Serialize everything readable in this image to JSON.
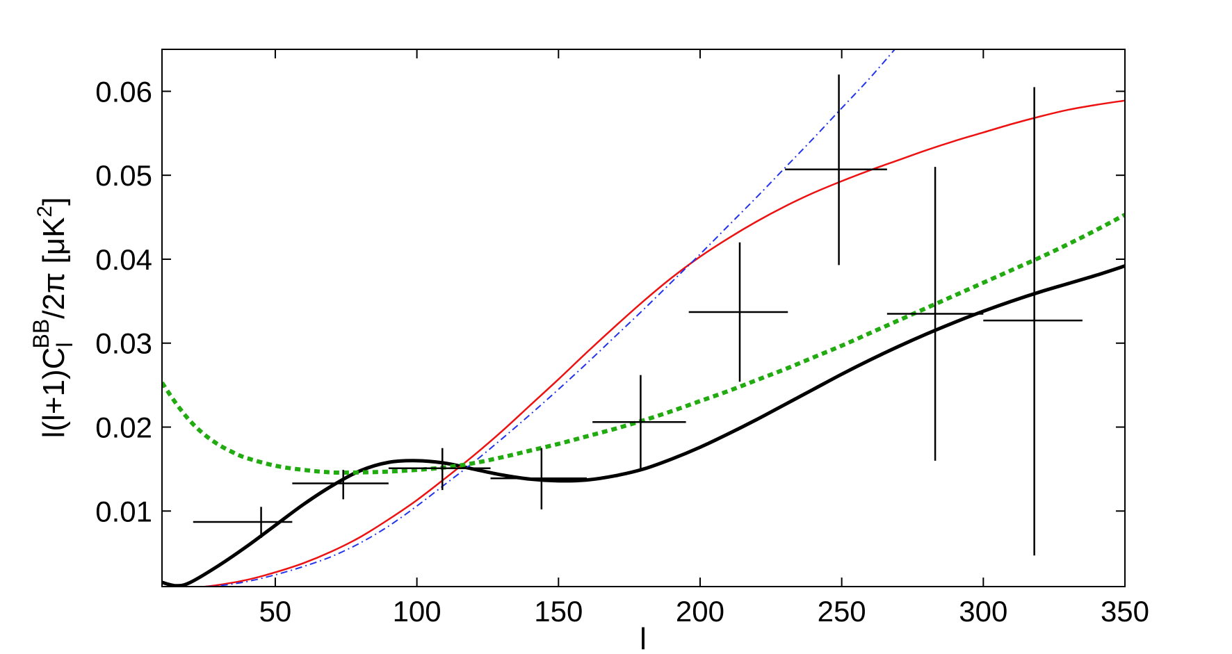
{
  "chart_data": {
    "type": "line",
    "title": "",
    "xlabel": "l",
    "ylabel": {
      "prefix": "l(l+1)C",
      "subscript": "l",
      "superscript": "BB",
      "suffix": "/2π [μK",
      "unit_superscript": "2",
      "close": "]"
    },
    "xlim": [
      10,
      350
    ],
    "ylim": [
      0.001,
      0.065
    ],
    "x_ticks": [
      50,
      100,
      150,
      200,
      250,
      300,
      350
    ],
    "x_tick_labels": [
      "50",
      "100",
      "150",
      "200",
      "250",
      "300",
      "350"
    ],
    "y_ticks": [
      0.01,
      0.02,
      0.03,
      0.04,
      0.05,
      0.06
    ],
    "y_tick_labels": [
      "0.01",
      "0.02",
      "0.03",
      "0.04",
      "0.05",
      "0.06"
    ],
    "grid": false,
    "series": [
      {
        "style": "solid-thick",
        "color": "#000000",
        "x": [
          10,
          15,
          20,
          30,
          40,
          50,
          60,
          70,
          80,
          90,
          100,
          110,
          120,
          130,
          140,
          150,
          160,
          170,
          180,
          190,
          200,
          210,
          220,
          230,
          240,
          250,
          260,
          270,
          280,
          290,
          300,
          310,
          320,
          330,
          340,
          350
        ],
        "y": [
          0.0015,
          0.0011,
          0.0015,
          0.0035,
          0.0058,
          0.0083,
          0.0108,
          0.013,
          0.0148,
          0.0158,
          0.016,
          0.0157,
          0.015,
          0.0143,
          0.0138,
          0.0136,
          0.0137,
          0.0142,
          0.015,
          0.0162,
          0.0176,
          0.0192,
          0.0209,
          0.0227,
          0.0245,
          0.0263,
          0.028,
          0.0296,
          0.0311,
          0.0325,
          0.0338,
          0.035,
          0.0361,
          0.0371,
          0.0381,
          0.0392
        ]
      },
      {
        "style": "solid",
        "color": "#ee1111",
        "x": [
          10,
          20,
          30,
          40,
          50,
          60,
          70,
          80,
          90,
          100,
          110,
          120,
          130,
          140,
          150,
          160,
          170,
          180,
          190,
          200,
          210,
          220,
          230,
          240,
          250,
          260,
          270,
          280,
          290,
          300,
          310,
          320,
          330,
          340,
          350
        ],
        "y": [
          0.0005,
          0.0008,
          0.0012,
          0.0018,
          0.0027,
          0.0038,
          0.0052,
          0.0069,
          0.009,
          0.0113,
          0.0139,
          0.0166,
          0.0195,
          0.0226,
          0.0257,
          0.0289,
          0.032,
          0.035,
          0.0378,
          0.0403,
          0.0425,
          0.0445,
          0.0463,
          0.0479,
          0.0493,
          0.0506,
          0.0518,
          0.053,
          0.0541,
          0.0551,
          0.0561,
          0.057,
          0.0578,
          0.0584,
          0.0589
        ]
      },
      {
        "style": "dash-dot",
        "color": "#2233ee",
        "x": [
          20,
          30,
          40,
          50,
          60,
          70,
          80,
          90,
          100,
          110,
          120,
          130,
          140,
          150,
          160,
          170,
          180,
          190,
          200,
          210,
          220,
          230,
          240,
          250,
          260,
          270
        ],
        "y": [
          0.0009,
          0.0011,
          0.0016,
          0.0024,
          0.0034,
          0.0046,
          0.0062,
          0.0082,
          0.0106,
          0.0132,
          0.0158,
          0.0186,
          0.0215,
          0.0245,
          0.0276,
          0.0308,
          0.034,
          0.0373,
          0.0406,
          0.044,
          0.0474,
          0.0509,
          0.0544,
          0.058,
          0.0616,
          0.0655
        ]
      },
      {
        "style": "dotted-thick",
        "color": "#22aa11",
        "x": [
          10,
          15,
          20,
          25,
          30,
          35,
          40,
          50,
          60,
          70,
          80,
          90,
          100,
          110,
          120,
          130,
          140,
          150,
          160,
          170,
          180,
          190,
          200,
          210,
          220,
          230,
          240,
          250,
          260,
          270,
          280,
          290,
          300,
          310,
          320,
          330,
          340,
          350
        ],
        "y": [
          0.0253,
          0.0228,
          0.0207,
          0.0191,
          0.0179,
          0.017,
          0.0163,
          0.0154,
          0.0149,
          0.0146,
          0.0146,
          0.0147,
          0.0149,
          0.0152,
          0.0157,
          0.0164,
          0.0172,
          0.018,
          0.0189,
          0.0198,
          0.0208,
          0.0219,
          0.0231,
          0.0243,
          0.0256,
          0.0269,
          0.0283,
          0.0297,
          0.0312,
          0.0327,
          0.0342,
          0.0357,
          0.0372,
          0.0387,
          0.0402,
          0.0418,
          0.0435,
          0.0453
        ]
      }
    ],
    "data_points": {
      "x": [
        45,
        74,
        109,
        144,
        179,
        214,
        249,
        283,
        318
      ],
      "y": [
        0.0087,
        0.0133,
        0.0151,
        0.0139,
        0.0206,
        0.0337,
        0.0507,
        0.0335,
        0.0327
      ],
      "x_low": [
        21,
        56,
        90,
        126,
        162,
        196,
        230,
        266,
        300
      ],
      "x_high": [
        56,
        90,
        126,
        160,
        195,
        231,
        266,
        300,
        335
      ],
      "y_low": [
        0.0068,
        0.0114,
        0.0125,
        0.0102,
        0.015,
        0.0254,
        0.0393,
        0.016,
        0.0047
      ],
      "y_high": [
        0.0105,
        0.0149,
        0.0175,
        0.0175,
        0.0262,
        0.042,
        0.062,
        0.051,
        0.0605
      ]
    }
  }
}
